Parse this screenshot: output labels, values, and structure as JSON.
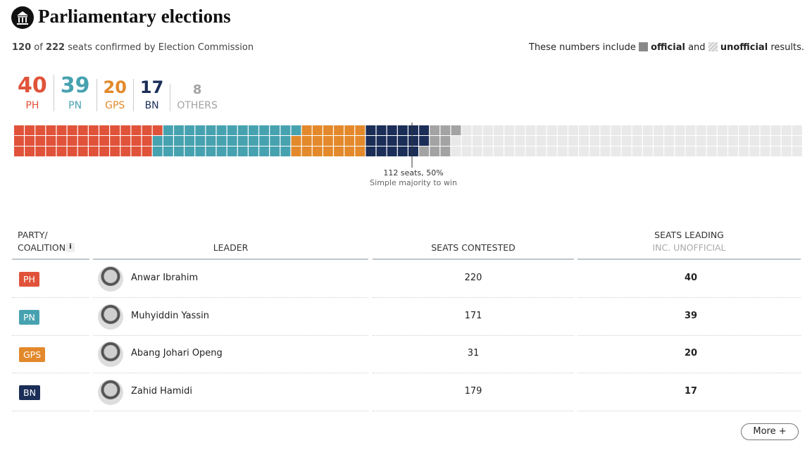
{
  "header": {
    "title": "Parliamentary elections",
    "confirmed": 120,
    "of_text": "of",
    "total": 222,
    "confirmed_text": "seats confirmed by Election Commission"
  },
  "legend": {
    "intro": "These numbers include",
    "official": "official",
    "and": "and",
    "unofficial": "unofficial",
    "outro": "results."
  },
  "parties": [
    {
      "short": "PH",
      "color": "#e0533a",
      "seats": 40,
      "leader": "Anwar Ibrahim",
      "contested": 220
    },
    {
      "short": "PN",
      "color": "#47a2b0",
      "seats": 39,
      "leader": "Muhyiddin Yassin",
      "contested": 171
    },
    {
      "short": "GPS",
      "color": "#e3892b",
      "seats": 20,
      "leader": "Abang Johari Openg",
      "contested": 31
    },
    {
      "short": "BN",
      "color": "#1b2e58",
      "seats": 17,
      "leader": "Zahid Hamidi",
      "contested": 179
    }
  ],
  "others": {
    "label": "OTHERS",
    "seats": 8,
    "color": "#a3a3a3"
  },
  "majority": {
    "seats": 112,
    "label": "112 seats, 50%",
    "note": "Simple majority to win"
  },
  "table": {
    "party_header": [
      "PARTY/",
      "COALITION"
    ],
    "info": "i",
    "leader_header": "LEADER",
    "contested_header": "SEATS CONTESTED",
    "leading_header": "SEATS LEADING",
    "leading_sub": "INC. UNOFFICIAL"
  },
  "button": "More +"
}
